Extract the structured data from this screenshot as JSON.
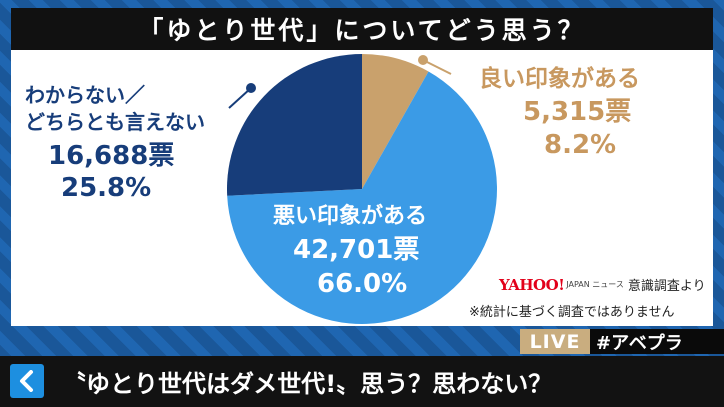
{
  "title": "「ゆとり世代」についてどう思う？",
  "chart_data": {
    "type": "pie",
    "title": "「ゆとり世代」についてどう思う？",
    "slices": [
      {
        "label": "良い印象がある",
        "votes": "5,315票",
        "percent_label": "8.2%",
        "value": 8.2,
        "color": "#c9a16c"
      },
      {
        "label": "悪い印象がある",
        "votes": "42,701票",
        "percent_label": "66.0%",
        "value": 66.0,
        "color": "#3b9be6"
      },
      {
        "label_line1": "わからない／",
        "label_line2": "どちらとも言えない",
        "votes": "16,688票",
        "percent_label": "25.8%",
        "value": 25.8,
        "color": "#173d7a"
      }
    ]
  },
  "source": {
    "logo": "YAHOO!",
    "logo_sub": "JAPAN ニュース",
    "text": "意識調査より"
  },
  "note": "※統計に基づく調査ではありません",
  "badges": {
    "live": "LIVE",
    "hashtag": "#アベプラ"
  },
  "caption": "〝ゆとり世代はダメ世代!〟思う？思わない？",
  "icons": {
    "back": "chevron-left-icon"
  }
}
